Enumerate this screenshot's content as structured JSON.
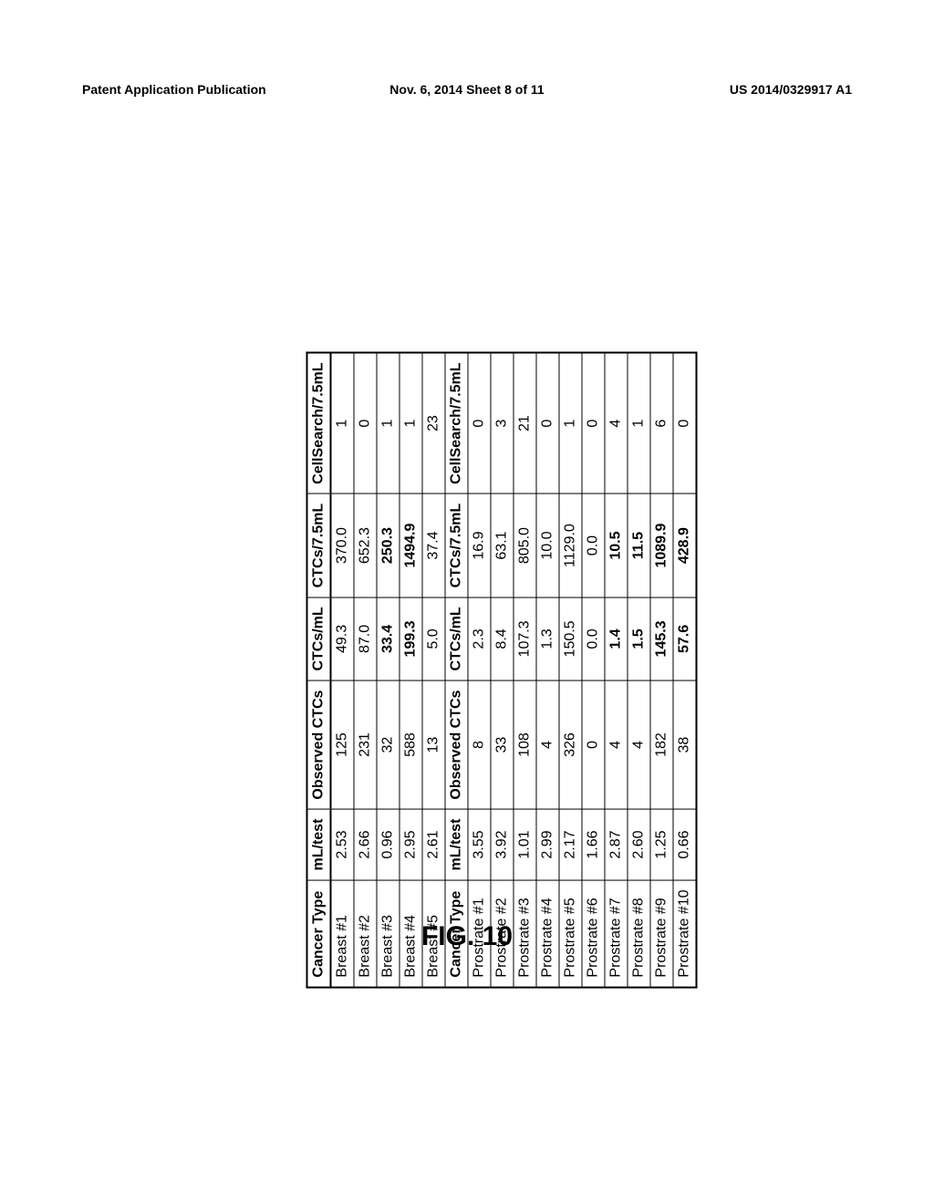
{
  "header": {
    "left": "Patent Application Publication",
    "center": "Nov. 6, 2014  Sheet 8 of 11",
    "right": "US 2014/0329917 A1"
  },
  "figure_caption": "FIG. 10",
  "table": {
    "type": "table",
    "background_color": "#ffffff",
    "border_color": "#000000",
    "text_color": "#000000",
    "font_family": "Arial",
    "font_size_pt": 12,
    "border_width_outer": 2.2,
    "border_width_inner": 1.2,
    "corner_radius": 14,
    "columns": [
      {
        "key": "cancer_type",
        "label": "Cancer Type",
        "align": "left"
      },
      {
        "key": "ml_test",
        "label": "mL/test",
        "align": "center"
      },
      {
        "key": "observed_ctcs",
        "label": "Observed CTCs",
        "align": "center"
      },
      {
        "key": "ctcs_ml",
        "label": "CTCs/mL",
        "align": "center"
      },
      {
        "key": "ctcs_7_5ml",
        "label": "CTCs/7.5mL",
        "align": "center"
      },
      {
        "key": "cellsearch",
        "label": "CellSearch/7.5mL",
        "align": "center"
      }
    ],
    "section1": {
      "header_labels": [
        "Cancer Type",
        "mL/test",
        "Observed CTCs",
        "CTCs/mL",
        "CTCs/7.5mL",
        "CellSearch/7.5mL"
      ],
      "rows": [
        {
          "cancer_type": "Breast #1",
          "ml_test": "2.53",
          "observed_ctcs": "125",
          "ctcs_ml": "49.3",
          "ctcs_7_5ml": "370.0",
          "cellsearch": "1",
          "bold": false
        },
        {
          "cancer_type": "Breast #2",
          "ml_test": "2.66",
          "observed_ctcs": "231",
          "ctcs_ml": "87.0",
          "ctcs_7_5ml": "652.3",
          "cellsearch": "0",
          "bold": false
        },
        {
          "cancer_type": "Breast #3",
          "ml_test": "0.96",
          "observed_ctcs": "32",
          "ctcs_ml": "33.4",
          "ctcs_7_5ml": "250.3",
          "cellsearch": "1",
          "bold": true
        },
        {
          "cancer_type": "Breast #4",
          "ml_test": "2.95",
          "observed_ctcs": "588",
          "ctcs_ml": "199.3",
          "ctcs_7_5ml": "1494.9",
          "cellsearch": "1",
          "bold": true
        },
        {
          "cancer_type": "Breast #5",
          "ml_test": "2.61",
          "observed_ctcs": "13",
          "ctcs_ml": "5.0",
          "ctcs_7_5ml": "37.4",
          "cellsearch": "23",
          "bold": false
        }
      ]
    },
    "section2": {
      "header_labels": [
        "Cancer Type",
        "mL/test",
        "Observed CTCs",
        "CTCs/mL",
        "CTCs/7.5mL",
        "CellSearch/7.5mL"
      ],
      "rows": [
        {
          "cancer_type": "Prostrate #1",
          "ml_test": "3.55",
          "observed_ctcs": "8",
          "ctcs_ml": "2.3",
          "ctcs_7_5ml": "16.9",
          "cellsearch": "0",
          "bold": false
        },
        {
          "cancer_type": "Prostrate #2",
          "ml_test": "3.92",
          "observed_ctcs": "33",
          "ctcs_ml": "8.4",
          "ctcs_7_5ml": "63.1",
          "cellsearch": "3",
          "bold": false
        },
        {
          "cancer_type": "Prostrate #3",
          "ml_test": "1.01",
          "observed_ctcs": "108",
          "ctcs_ml": "107.3",
          "ctcs_7_5ml": "805.0",
          "cellsearch": "21",
          "bold": false
        },
        {
          "cancer_type": "Prostrate #4",
          "ml_test": "2.99",
          "observed_ctcs": "4",
          "ctcs_ml": "1.3",
          "ctcs_7_5ml": "10.0",
          "cellsearch": "0",
          "bold": false
        },
        {
          "cancer_type": "Prostrate #5",
          "ml_test": "2.17",
          "observed_ctcs": "326",
          "ctcs_ml": "150.5",
          "ctcs_7_5ml": "1129.0",
          "cellsearch": "1",
          "bold": false
        },
        {
          "cancer_type": "Prostrate #6",
          "ml_test": "1.66",
          "observed_ctcs": "0",
          "ctcs_ml": "0.0",
          "ctcs_7_5ml": "0.0",
          "cellsearch": "0",
          "bold": false
        },
        {
          "cancer_type": "Prostrate #7",
          "ml_test": "2.87",
          "observed_ctcs": "4",
          "ctcs_ml": "1.4",
          "ctcs_7_5ml": "10.5",
          "cellsearch": "4",
          "bold": true
        },
        {
          "cancer_type": "Prostrate #8",
          "ml_test": "2.60",
          "observed_ctcs": "4",
          "ctcs_ml": "1.5",
          "ctcs_7_5ml": "11.5",
          "cellsearch": "1",
          "bold": true
        },
        {
          "cancer_type": "Prostrate #9",
          "ml_test": "1.25",
          "observed_ctcs": "182",
          "ctcs_ml": "145.3",
          "ctcs_7_5ml": "1089.9",
          "cellsearch": "6",
          "bold": true
        },
        {
          "cancer_type": "Prostrate #10",
          "ml_test": "0.66",
          "observed_ctcs": "38",
          "ctcs_ml": "57.6",
          "ctcs_7_5ml": "428.9",
          "cellsearch": "0",
          "bold": true
        }
      ]
    }
  }
}
